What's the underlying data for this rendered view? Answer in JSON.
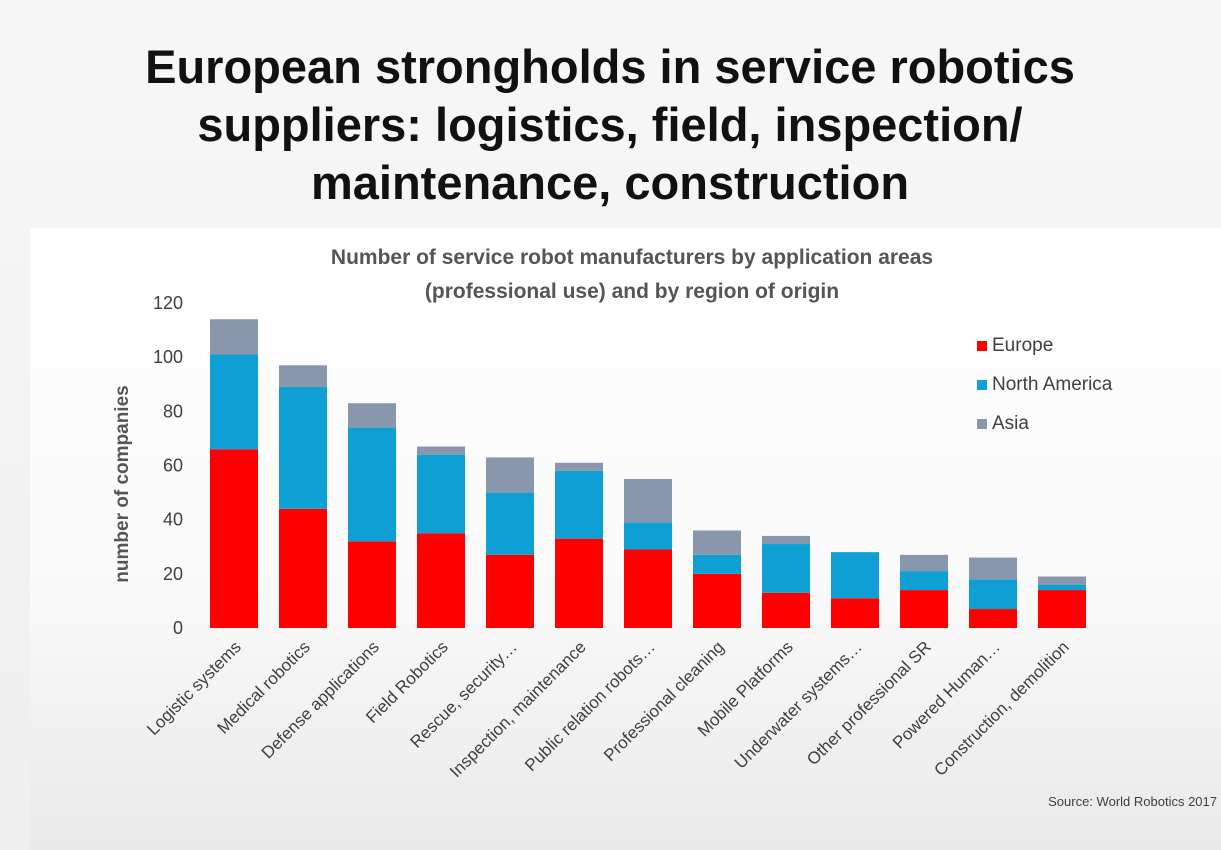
{
  "slide": {
    "title_lines": [
      "European strongholds in service robotics",
      "suppliers: logistics, field, inspection/",
      "maintenance, construction"
    ],
    "source": "Source: World Robotics 2017"
  },
  "chart_data": {
    "type": "bar",
    "stacked": true,
    "title_lines": [
      "Number of service robot manufacturers by application areas",
      "(professional use) and by region of origin"
    ],
    "xlabel": "",
    "ylabel": "number of companies",
    "ylim": [
      0,
      120
    ],
    "yticks": [
      0,
      20,
      40,
      60,
      80,
      100,
      120
    ],
    "grid": false,
    "legend_position": "right",
    "categories": [
      "Logistic systems",
      "Medical robotics",
      "Defense applications",
      "Field Robotics",
      "Rescue, security…",
      "Inspection, maintenance",
      "Public relation robots…",
      "Professional cleaning",
      "Mobile Platforms",
      "Underwater systems…",
      "Other professional SR",
      "Powered Human…",
      "Construction, demolition"
    ],
    "series": [
      {
        "name": "Europe",
        "color": "#ff0000",
        "values": [
          66,
          44,
          32,
          35,
          27,
          33,
          29,
          20,
          13,
          11,
          14,
          7,
          14
        ]
      },
      {
        "name": "North America",
        "color": "#0ea0d4",
        "values": [
          35,
          45,
          42,
          29,
          23,
          25,
          10,
          7,
          18,
          17,
          7,
          11,
          2
        ]
      },
      {
        "name": "Asia",
        "color": "#8897ab",
        "values": [
          13,
          8,
          9,
          3,
          13,
          3,
          16,
          9,
          3,
          0,
          6,
          8,
          3
        ]
      }
    ]
  }
}
